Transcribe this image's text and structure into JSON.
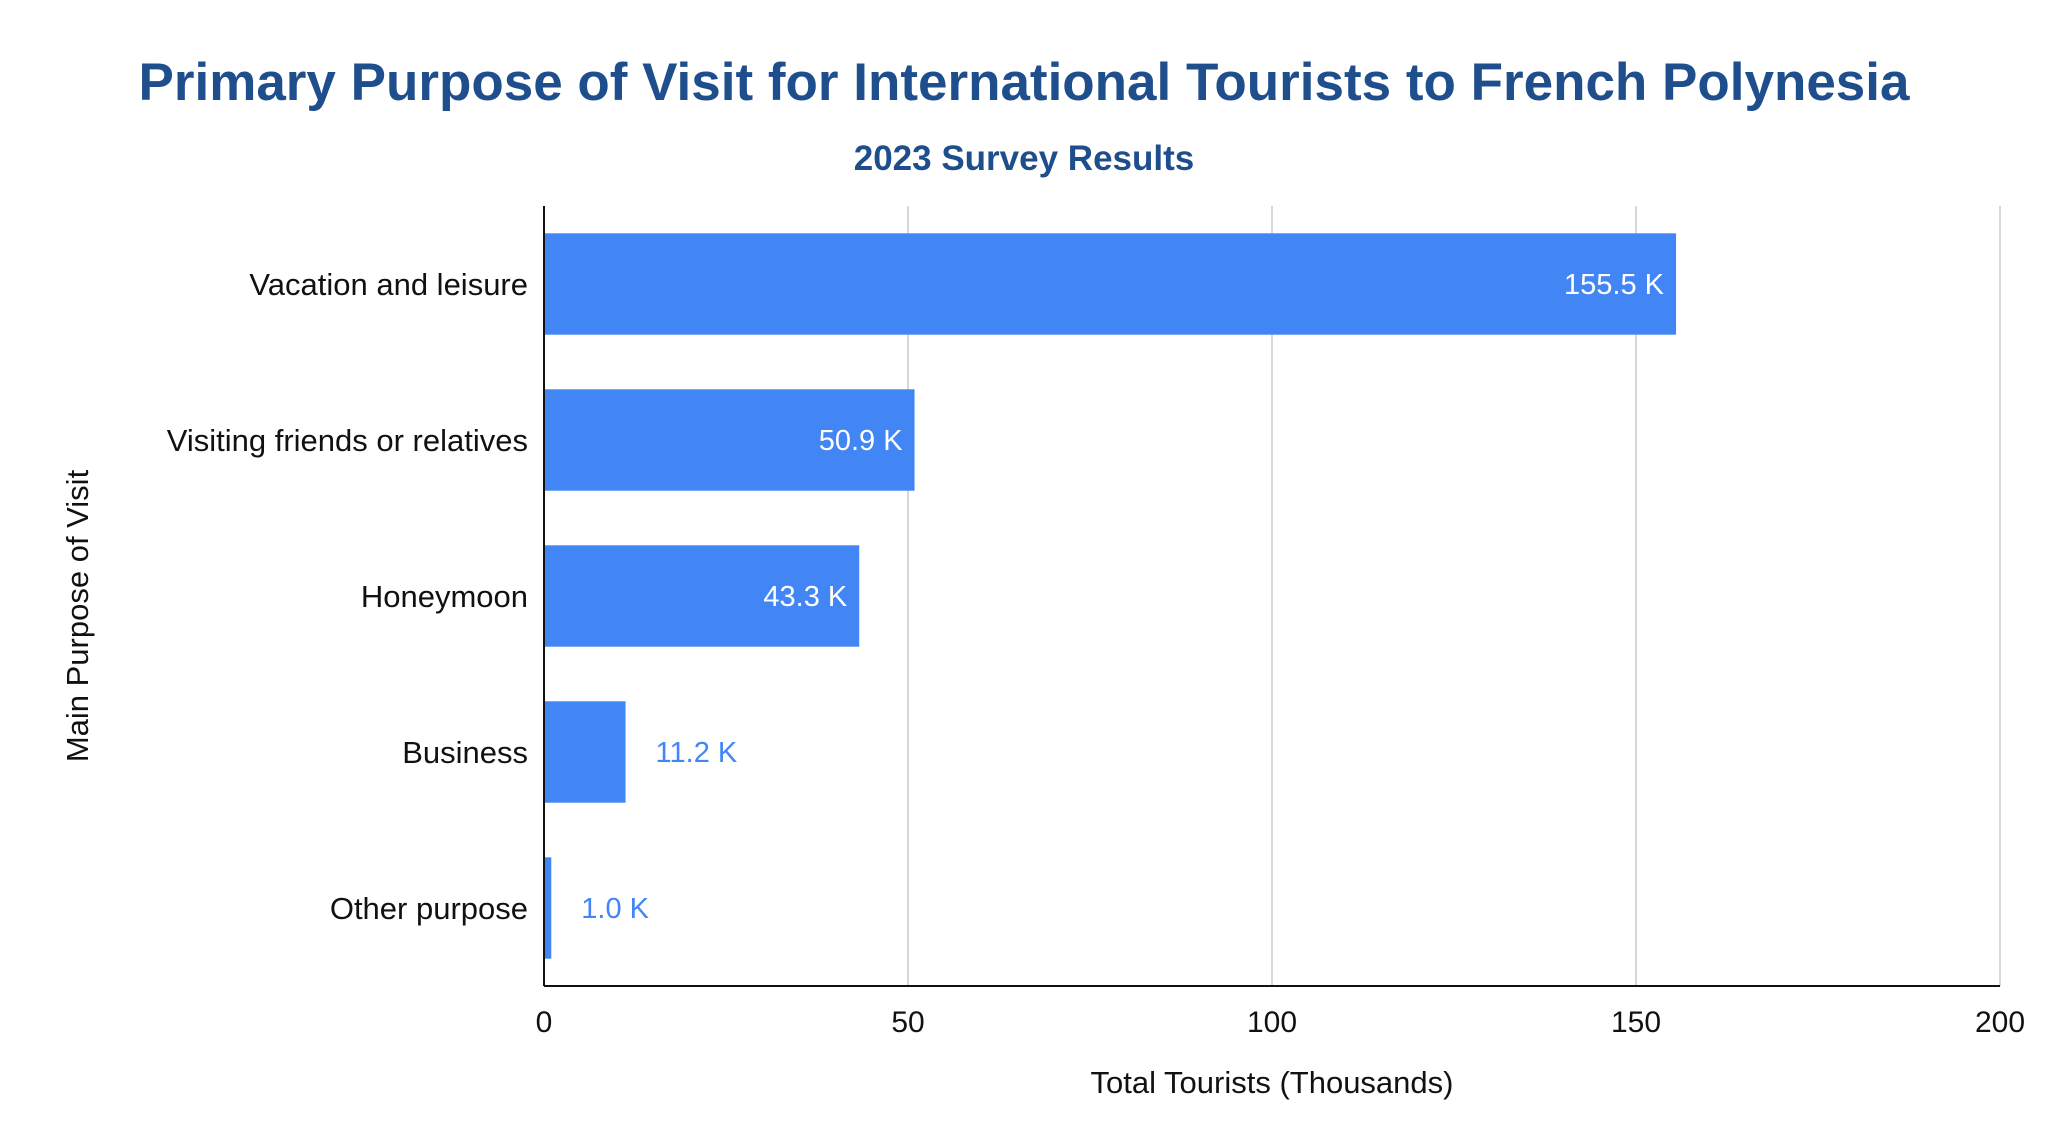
{
  "chart_data": {
    "type": "bar",
    "orientation": "horizontal",
    "title": "Primary Purpose of Visit for International Tourists to French Polynesia",
    "subtitle": "2023 Survey Results",
    "xlabel": "Total Tourists (Thousands)",
    "ylabel": "Main Purpose of Visit",
    "categories": [
      "Vacation and leisure",
      "Visiting friends or relatives",
      "Honeymoon",
      "Business",
      "Other purpose"
    ],
    "values": [
      155.5,
      50.9,
      43.3,
      11.2,
      1.0
    ],
    "data_labels": [
      "155.5 K",
      "50.9 K",
      "43.3 K",
      "11.2 K",
      "1.0 K"
    ],
    "xlim": [
      0,
      200
    ],
    "xticks": [
      "0",
      "50",
      "100",
      "150",
      "200"
    ],
    "grid": true,
    "legend": "none",
    "colors": {
      "bar": "#4285f4",
      "title": "#1f4e8c",
      "label_inside": "#ffffff",
      "label_outside": "#4285f4",
      "gridline": "#cccccc",
      "axis": "#111111"
    }
  }
}
